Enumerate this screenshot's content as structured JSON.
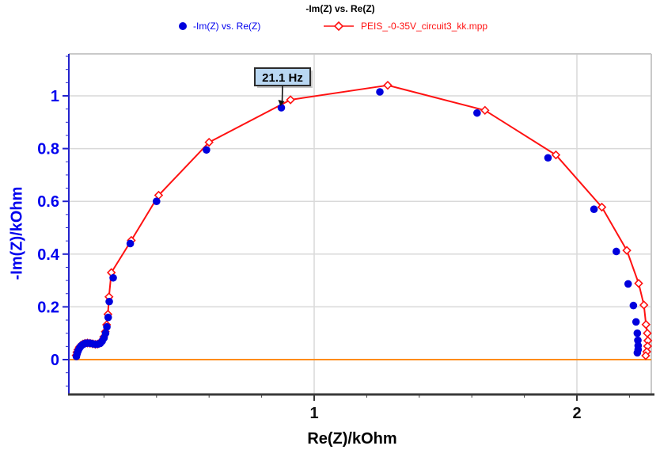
{
  "title": "-Im(Z) vs. Re(Z)",
  "legend": [
    {
      "label": "-Im(Z) vs. Re(Z)",
      "color": "#0000dd",
      "marker": "filled-circle"
    },
    {
      "label": "PEIS_-0-35V_circuit3_kk.mpp",
      "color": "#ff1111",
      "marker": "open-diamond-line"
    }
  ],
  "colors": {
    "measured_series": "#0000dd",
    "fit_series": "#ff1111",
    "axis_y": "#2222cc",
    "axis_x": "#3a3a3a",
    "frame_light": "#c9c9c9",
    "grid": "#d9d9d9",
    "zero_line": "#ff8c1a",
    "annotation_fill": "#b9d7f2",
    "annotation_border": "#2b2b2b",
    "tick_label_y": "#0000ee",
    "tick_label_x": "#111111"
  },
  "chart_data": {
    "type": "scatter",
    "title": "-Im(Z) vs. Re(Z)",
    "xlabel": "Re(Z)/kOhm",
    "ylabel": "-Im(Z)/kOhm",
    "xlim": [
      0.066,
      2.283
    ],
    "ylim": [
      -0.132,
      1.159
    ],
    "grid": true,
    "legend_position": "top",
    "x_ticks_major": {
      "values": [
        1,
        2
      ],
      "labels": [
        "1",
        "2"
      ]
    },
    "y_ticks_major": {
      "values": [
        0,
        0.2,
        0.4,
        0.6,
        0.8,
        1
      ],
      "labels": [
        "0",
        "0.2",
        "0.4",
        "0.6",
        "0.8",
        "1"
      ]
    },
    "x_minor_step": 0.2,
    "y_minor_step": 0.05,
    "zero_line_y": 0,
    "series": [
      {
        "name": "-Im(Z) vs. Re(Z)",
        "style": "scatter",
        "marker": "filled-circle",
        "color": "#0000dd",
        "points": [
          [
            0.095,
            0.012
          ],
          [
            0.098,
            0.024
          ],
          [
            0.102,
            0.034
          ],
          [
            0.107,
            0.044
          ],
          [
            0.113,
            0.052
          ],
          [
            0.121,
            0.058
          ],
          [
            0.129,
            0.062
          ],
          [
            0.138,
            0.063
          ],
          [
            0.148,
            0.062
          ],
          [
            0.158,
            0.06
          ],
          [
            0.168,
            0.058
          ],
          [
            0.177,
            0.059
          ],
          [
            0.186,
            0.062
          ],
          [
            0.193,
            0.07
          ],
          [
            0.2,
            0.082
          ],
          [
            0.206,
            0.1
          ],
          [
            0.211,
            0.124
          ],
          [
            0.216,
            0.16
          ],
          [
            0.22,
            0.22
          ],
          [
            0.235,
            0.31
          ],
          [
            0.3,
            0.44
          ],
          [
            0.4,
            0.6
          ],
          [
            0.59,
            0.795
          ],
          [
            0.875,
            0.955
          ],
          [
            1.25,
            1.015
          ],
          [
            1.62,
            0.935
          ],
          [
            1.89,
            0.765
          ],
          [
            2.065,
            0.57
          ],
          [
            2.15,
            0.41
          ],
          [
            2.195,
            0.287
          ],
          [
            2.215,
            0.205
          ],
          [
            2.225,
            0.143
          ],
          [
            2.23,
            0.1
          ],
          [
            2.232,
            0.073
          ],
          [
            2.233,
            0.053
          ],
          [
            2.233,
            0.038
          ],
          [
            2.23,
            0.026
          ]
        ]
      },
      {
        "name": "PEIS_-0-35V_circuit3_kk.mpp",
        "style": "line+scatter",
        "marker": "open-diamond",
        "color": "#ff1111",
        "points": [
          [
            0.094,
            0.016
          ],
          [
            0.097,
            0.028
          ],
          [
            0.101,
            0.038
          ],
          [
            0.106,
            0.047
          ],
          [
            0.112,
            0.054
          ],
          [
            0.12,
            0.059
          ],
          [
            0.128,
            0.062
          ],
          [
            0.137,
            0.063
          ],
          [
            0.147,
            0.062
          ],
          [
            0.157,
            0.06
          ],
          [
            0.167,
            0.058
          ],
          [
            0.176,
            0.059
          ],
          [
            0.185,
            0.063
          ],
          [
            0.192,
            0.072
          ],
          [
            0.199,
            0.086
          ],
          [
            0.205,
            0.106
          ],
          [
            0.21,
            0.132
          ],
          [
            0.215,
            0.172
          ],
          [
            0.219,
            0.238
          ],
          [
            0.228,
            0.33
          ],
          [
            0.304,
            0.452
          ],
          [
            0.408,
            0.623
          ],
          [
            0.6,
            0.824
          ],
          [
            0.91,
            0.985
          ],
          [
            1.28,
            1.04
          ],
          [
            1.65,
            0.945
          ],
          [
            1.92,
            0.776
          ],
          [
            2.095,
            0.578
          ],
          [
            2.19,
            0.414
          ],
          [
            2.235,
            0.289
          ],
          [
            2.255,
            0.207
          ],
          [
            2.263,
            0.133
          ],
          [
            2.268,
            0.1
          ],
          [
            2.27,
            0.072
          ],
          [
            2.269,
            0.051
          ],
          [
            2.266,
            0.03
          ],
          [
            2.262,
            0.015
          ]
        ]
      }
    ],
    "annotations": [
      {
        "text": "21.1 Hz",
        "target_x": 0.875,
        "target_y": 0.955
      }
    ]
  }
}
